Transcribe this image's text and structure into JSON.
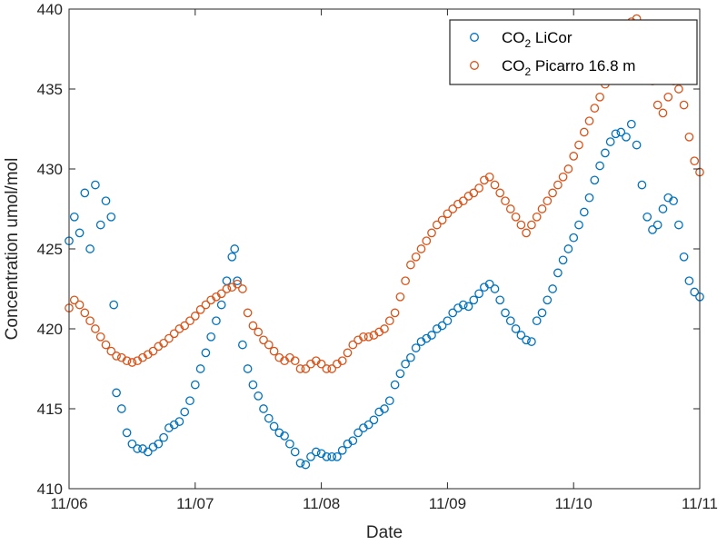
{
  "chart_data": {
    "type": "scatter",
    "xlabel": "Date",
    "ylabel": "Concentration umol/mol",
    "xlim": [
      "11/06",
      "11/11"
    ],
    "ylim": [
      410,
      440
    ],
    "x_ticks": [
      "11/06",
      "11/07",
      "11/08",
      "11/09",
      "11/10",
      "11/11"
    ],
    "y_ticks": [
      410,
      415,
      420,
      425,
      430,
      435,
      440
    ],
    "legend_placement": "top-right",
    "grid": false,
    "series": [
      {
        "name_main": "CO",
        "name_sub": "2",
        "name_tail": " LiCor",
        "color": "#0072BD",
        "marker": "open-circle",
        "points": [
          [
            "11/06 00:00",
            425.5
          ],
          [
            "11/06 01:00",
            427.0
          ],
          [
            "11/06 02:00",
            426.0
          ],
          [
            "11/06 03:00",
            428.5
          ],
          [
            "11/06 04:00",
            425.0
          ],
          [
            "11/06 05:00",
            429.0
          ],
          [
            "11/06 06:00",
            426.5
          ],
          [
            "11/06 07:00",
            428.0
          ],
          [
            "11/06 08:00",
            427.0
          ],
          [
            "11/06 08:30",
            421.5
          ],
          [
            "11/06 09:00",
            416.0
          ],
          [
            "11/06 10:00",
            415.0
          ],
          [
            "11/06 11:00",
            413.5
          ],
          [
            "11/06 12:00",
            412.8
          ],
          [
            "11/06 13:00",
            412.5
          ],
          [
            "11/06 14:00",
            412.5
          ],
          [
            "11/06 15:00",
            412.3
          ],
          [
            "11/06 16:00",
            412.6
          ],
          [
            "11/06 17:00",
            412.8
          ],
          [
            "11/06 18:00",
            413.2
          ],
          [
            "11/06 19:00",
            413.8
          ],
          [
            "11/06 20:00",
            414.0
          ],
          [
            "11/06 21:00",
            414.2
          ],
          [
            "11/06 22:00",
            414.8
          ],
          [
            "11/06 23:00",
            415.5
          ],
          [
            "11/07 00:00",
            416.5
          ],
          [
            "11/07 01:00",
            417.5
          ],
          [
            "11/07 02:00",
            418.5
          ],
          [
            "11/07 03:00",
            419.5
          ],
          [
            "11/07 04:00",
            420.5
          ],
          [
            "11/07 05:00",
            421.5
          ],
          [
            "11/07 06:00",
            423.0
          ],
          [
            "11/07 07:00",
            424.5
          ],
          [
            "11/07 07:30",
            425.0
          ],
          [
            "11/07 08:00",
            423.0
          ],
          [
            "11/07 09:00",
            419.0
          ],
          [
            "11/07 10:00",
            417.5
          ],
          [
            "11/07 11:00",
            416.5
          ],
          [
            "11/07 12:00",
            415.8
          ],
          [
            "11/07 13:00",
            415.0
          ],
          [
            "11/07 14:00",
            414.4
          ],
          [
            "11/07 15:00",
            413.9
          ],
          [
            "11/07 16:00",
            413.5
          ],
          [
            "11/07 17:00",
            413.3
          ],
          [
            "11/07 18:00",
            412.8
          ],
          [
            "11/07 19:00",
            412.3
          ],
          [
            "11/07 20:00",
            411.6
          ],
          [
            "11/07 21:00",
            411.5
          ],
          [
            "11/07 22:00",
            412.0
          ],
          [
            "11/07 23:00",
            412.3
          ],
          [
            "11/08 00:00",
            412.2
          ],
          [
            "11/08 01:00",
            412.0
          ],
          [
            "11/08 02:00",
            412.0
          ],
          [
            "11/08 03:00",
            412.0
          ],
          [
            "11/08 04:00",
            412.4
          ],
          [
            "11/08 05:00",
            412.8
          ],
          [
            "11/08 06:00",
            413.0
          ],
          [
            "11/08 07:00",
            413.5
          ],
          [
            "11/08 08:00",
            413.8
          ],
          [
            "11/08 09:00",
            414.0
          ],
          [
            "11/08 10:00",
            414.3
          ],
          [
            "11/08 11:00",
            414.8
          ],
          [
            "11/08 12:00",
            415.0
          ],
          [
            "11/08 13:00",
            415.5
          ],
          [
            "11/08 14:00",
            416.5
          ],
          [
            "11/08 15:00",
            417.2
          ],
          [
            "11/08 16:00",
            417.8
          ],
          [
            "11/08 17:00",
            418.2
          ],
          [
            "11/08 18:00",
            418.8
          ],
          [
            "11/08 19:00",
            419.2
          ],
          [
            "11/08 20:00",
            419.4
          ],
          [
            "11/08 21:00",
            419.6
          ],
          [
            "11/08 22:00",
            420.0
          ],
          [
            "11/08 23:00",
            420.2
          ],
          [
            "11/09 00:00",
            420.5
          ],
          [
            "11/09 01:00",
            421.0
          ],
          [
            "11/09 02:00",
            421.3
          ],
          [
            "11/09 03:00",
            421.5
          ],
          [
            "11/09 04:00",
            421.4
          ],
          [
            "11/09 05:00",
            421.8
          ],
          [
            "11/09 06:00",
            422.2
          ],
          [
            "11/09 07:00",
            422.6
          ],
          [
            "11/09 08:00",
            422.8
          ],
          [
            "11/09 09:00",
            422.5
          ],
          [
            "11/09 10:00",
            421.8
          ],
          [
            "11/09 11:00",
            421.0
          ],
          [
            "11/09 12:00",
            420.5
          ],
          [
            "11/09 13:00",
            420.0
          ],
          [
            "11/09 14:00",
            419.6
          ],
          [
            "11/09 15:00",
            419.3
          ],
          [
            "11/09 16:00",
            419.2
          ],
          [
            "11/09 17:00",
            420.5
          ],
          [
            "11/09 18:00",
            421.0
          ],
          [
            "11/09 19:00",
            421.8
          ],
          [
            "11/09 20:00",
            422.5
          ],
          [
            "11/09 21:00",
            423.5
          ],
          [
            "11/09 22:00",
            424.3
          ],
          [
            "11/09 23:00",
            425.0
          ],
          [
            "11/10 00:00",
            425.7
          ],
          [
            "11/10 01:00",
            426.5
          ],
          [
            "11/10 02:00",
            427.3
          ],
          [
            "11/10 03:00",
            428.2
          ],
          [
            "11/10 04:00",
            429.3
          ],
          [
            "11/10 05:00",
            430.2
          ],
          [
            "11/10 06:00",
            431.0
          ],
          [
            "11/10 07:00",
            431.7
          ],
          [
            "11/10 08:00",
            432.2
          ],
          [
            "11/10 09:00",
            432.3
          ],
          [
            "11/10 10:00",
            432.0
          ],
          [
            "11/10 11:00",
            432.8
          ],
          [
            "11/10 12:00",
            431.5
          ],
          [
            "11/10 13:00",
            429.0
          ],
          [
            "11/10 14:00",
            427.0
          ],
          [
            "11/10 15:00",
            426.2
          ],
          [
            "11/10 16:00",
            426.5
          ],
          [
            "11/10 17:00",
            427.5
          ],
          [
            "11/10 18:00",
            428.2
          ],
          [
            "11/10 19:00",
            428.0
          ],
          [
            "11/10 20:00",
            426.5
          ],
          [
            "11/10 21:00",
            424.5
          ],
          [
            "11/10 22:00",
            423.0
          ],
          [
            "11/10 23:00",
            422.3
          ],
          [
            "11/11 00:00",
            422.0
          ]
        ]
      },
      {
        "name_main": "CO",
        "name_sub": "2",
        "name_tail": " Picarro 16.8 m",
        "color": "#D95319",
        "marker": "open-circle",
        "points": [
          [
            "11/06 00:00",
            421.3
          ],
          [
            "11/06 01:00",
            421.8
          ],
          [
            "11/06 02:00",
            421.5
          ],
          [
            "11/06 03:00",
            421.0
          ],
          [
            "11/06 04:00",
            420.5
          ],
          [
            "11/06 05:00",
            420.0
          ],
          [
            "11/06 06:00",
            419.5
          ],
          [
            "11/06 07:00",
            419.0
          ],
          [
            "11/06 08:00",
            418.6
          ],
          [
            "11/06 09:00",
            418.3
          ],
          [
            "11/06 10:00",
            418.2
          ],
          [
            "11/06 11:00",
            418.0
          ],
          [
            "11/06 12:00",
            417.9
          ],
          [
            "11/06 13:00",
            418.0
          ],
          [
            "11/06 14:00",
            418.2
          ],
          [
            "11/06 15:00",
            418.4
          ],
          [
            "11/06 16:00",
            418.6
          ],
          [
            "11/06 17:00",
            418.9
          ],
          [
            "11/06 18:00",
            419.1
          ],
          [
            "11/06 19:00",
            419.4
          ],
          [
            "11/06 20:00",
            419.7
          ],
          [
            "11/06 21:00",
            420.0
          ],
          [
            "11/06 22:00",
            420.2
          ],
          [
            "11/06 23:00",
            420.5
          ],
          [
            "11/07 00:00",
            420.8
          ],
          [
            "11/07 01:00",
            421.2
          ],
          [
            "11/07 02:00",
            421.5
          ],
          [
            "11/07 03:00",
            421.8
          ],
          [
            "11/07 04:00",
            422.0
          ],
          [
            "11/07 05:00",
            422.2
          ],
          [
            "11/07 06:00",
            422.5
          ],
          [
            "11/07 07:00",
            422.6
          ],
          [
            "11/07 08:00",
            422.8
          ],
          [
            "11/07 09:00",
            422.5
          ],
          [
            "11/07 10:00",
            421.0
          ],
          [
            "11/07 11:00",
            420.2
          ],
          [
            "11/07 12:00",
            419.8
          ],
          [
            "11/07 13:00",
            419.3
          ],
          [
            "11/07 14:00",
            419.0
          ],
          [
            "11/07 15:00",
            418.6
          ],
          [
            "11/07 16:00",
            418.2
          ],
          [
            "11/07 17:00",
            418.0
          ],
          [
            "11/07 18:00",
            418.2
          ],
          [
            "11/07 19:00",
            418.0
          ],
          [
            "11/07 20:00",
            417.5
          ],
          [
            "11/07 21:00",
            417.5
          ],
          [
            "11/07 22:00",
            417.8
          ],
          [
            "11/07 23:00",
            418.0
          ],
          [
            "11/08 00:00",
            417.8
          ],
          [
            "11/08 01:00",
            417.5
          ],
          [
            "11/08 02:00",
            417.5
          ],
          [
            "11/08 03:00",
            417.8
          ],
          [
            "11/08 04:00",
            418.0
          ],
          [
            "11/08 05:00",
            418.5
          ],
          [
            "11/08 06:00",
            419.0
          ],
          [
            "11/08 07:00",
            419.3
          ],
          [
            "11/08 08:00",
            419.5
          ],
          [
            "11/08 09:00",
            419.5
          ],
          [
            "11/08 10:00",
            419.6
          ],
          [
            "11/08 11:00",
            419.8
          ],
          [
            "11/08 12:00",
            420.0
          ],
          [
            "11/08 13:00",
            420.5
          ],
          [
            "11/08 14:00",
            421.0
          ],
          [
            "11/08 15:00",
            422.0
          ],
          [
            "11/08 16:00",
            423.0
          ],
          [
            "11/08 17:00",
            424.0
          ],
          [
            "11/08 18:00",
            424.5
          ],
          [
            "11/08 19:00",
            425.0
          ],
          [
            "11/08 20:00",
            425.5
          ],
          [
            "11/08 21:00",
            426.0
          ],
          [
            "11/08 22:00",
            426.5
          ],
          [
            "11/08 23:00",
            426.8
          ],
          [
            "11/09 00:00",
            427.2
          ],
          [
            "11/09 01:00",
            427.5
          ],
          [
            "11/09 02:00",
            427.8
          ],
          [
            "11/09 03:00",
            428.0
          ],
          [
            "11/09 04:00",
            428.3
          ],
          [
            "11/09 05:00",
            428.5
          ],
          [
            "11/09 06:00",
            428.8
          ],
          [
            "11/09 07:00",
            429.3
          ],
          [
            "11/09 08:00",
            429.5
          ],
          [
            "11/09 09:00",
            429.0
          ],
          [
            "11/09 10:00",
            428.5
          ],
          [
            "11/09 11:00",
            428.0
          ],
          [
            "11/09 12:00",
            427.5
          ],
          [
            "11/09 13:00",
            427.0
          ],
          [
            "11/09 14:00",
            426.5
          ],
          [
            "11/09 15:00",
            426.0
          ],
          [
            "11/09 16:00",
            426.5
          ],
          [
            "11/09 17:00",
            427.0
          ],
          [
            "11/09 18:00",
            427.5
          ],
          [
            "11/09 19:00",
            428.0
          ],
          [
            "11/09 20:00",
            428.5
          ],
          [
            "11/09 21:00",
            429.0
          ],
          [
            "11/09 22:00",
            429.5
          ],
          [
            "11/09 23:00",
            430.0
          ],
          [
            "11/10 00:00",
            430.8
          ],
          [
            "11/10 01:00",
            431.5
          ],
          [
            "11/10 02:00",
            432.3
          ],
          [
            "11/10 03:00",
            433.0
          ],
          [
            "11/10 04:00",
            433.8
          ],
          [
            "11/10 05:00",
            434.5
          ],
          [
            "11/10 06:00",
            435.3
          ],
          [
            "11/10 07:00",
            436.0
          ],
          [
            "11/10 08:00",
            436.8
          ],
          [
            "11/10 09:00",
            437.5
          ],
          [
            "11/10 10:00",
            438.3
          ],
          [
            "11/10 11:00",
            439.2
          ],
          [
            "11/10 12:00",
            439.4
          ],
          [
            "11/10 13:00",
            438.8
          ],
          [
            "11/10 14:00",
            437.2
          ],
          [
            "11/10 15:00",
            435.5
          ],
          [
            "11/10 16:00",
            434.0
          ],
          [
            "11/10 17:00",
            433.5
          ],
          [
            "11/10 18:00",
            434.5
          ],
          [
            "11/10 19:00",
            435.5
          ],
          [
            "11/10 20:00",
            435.0
          ],
          [
            "11/10 21:00",
            434.0
          ],
          [
            "11/10 22:00",
            432.0
          ],
          [
            "11/10 23:00",
            430.5
          ],
          [
            "11/11 00:00",
            429.8
          ]
        ]
      }
    ]
  }
}
